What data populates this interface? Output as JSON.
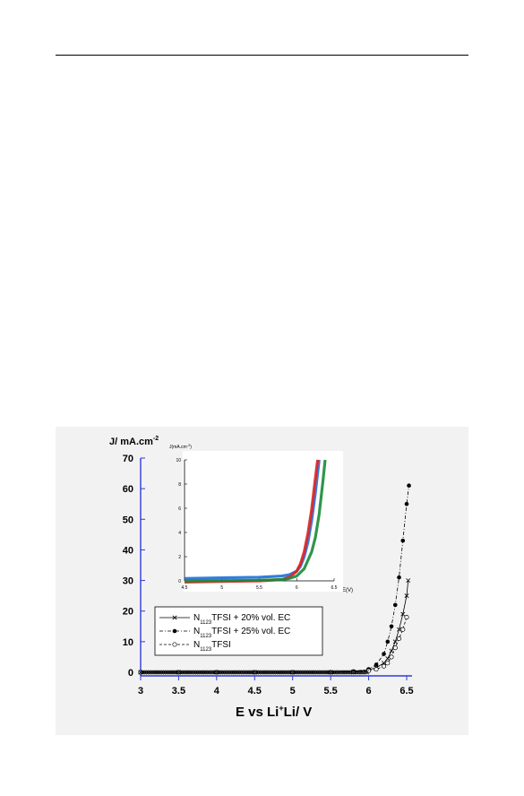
{
  "page": {
    "background": "#ffffff",
    "figure_background": "#f2f2f2"
  },
  "chart_data": [
    {
      "type": "scatter",
      "ylabel_main": "J/ mA.cm",
      "ylabel_sup": "-2",
      "xlabel_pre": "E vs Li",
      "xlabel_sup": "+",
      "xlabel_post": "Li/ V",
      "xlim": [
        3,
        6.5
      ],
      "ylim": [
        0,
        70
      ],
      "xticks": [
        "3",
        "3.5",
        "4",
        "4.5",
        "5",
        "5.5",
        "6",
        "6.5"
      ],
      "yticks": [
        "0",
        "10",
        "20",
        "30",
        "40",
        "50",
        "60",
        "70"
      ],
      "axis_color": "#2f3ae0",
      "legend_position": "bottom-left",
      "legend": [
        {
          "pre": "N",
          "sub": "1123",
          "post": "TFSI + 20% vol. EC",
          "marker": "x",
          "dash": "solid"
        },
        {
          "pre": "N",
          "sub": "1123",
          "post": "TFSI + 25% vol. EC",
          "marker": "filled-circle",
          "dash": "dash-dot"
        },
        {
          "pre": "N",
          "sub": "1123",
          "post": "TFSI",
          "marker": "open-circle",
          "dash": "dashed"
        }
      ],
      "series": [
        {
          "key": "ec20",
          "x": [
            3.0,
            3.5,
            4.0,
            4.5,
            5.0,
            5.5,
            5.8,
            6.0,
            6.1,
            6.2,
            6.25,
            6.3,
            6.35,
            6.4,
            6.45,
            6.5,
            6.52
          ],
          "y": [
            0,
            0,
            0,
            0,
            0,
            0,
            0.2,
            0.8,
            1.5,
            3.0,
            4.5,
            7.0,
            10.0,
            14.0,
            19.0,
            25.0,
            30.0
          ]
        },
        {
          "key": "ec25",
          "x": [
            3.0,
            3.5,
            4.0,
            4.5,
            5.0,
            5.5,
            5.8,
            6.0,
            6.1,
            6.2,
            6.25,
            6.3,
            6.35,
            6.4,
            6.45,
            6.5,
            6.53
          ],
          "y": [
            0,
            0,
            0,
            0,
            0,
            0,
            0.3,
            1.0,
            2.5,
            6.0,
            10.0,
            15.0,
            22.0,
            31.0,
            43.0,
            55.0,
            61.0
          ]
        },
        {
          "key": "neat",
          "x": [
            3.0,
            3.5,
            4.0,
            4.5,
            5.0,
            5.5,
            5.8,
            6.0,
            6.1,
            6.2,
            6.25,
            6.3,
            6.35,
            6.4,
            6.45,
            6.5
          ],
          "y": [
            0,
            0,
            0,
            0,
            0,
            0,
            0.1,
            0.5,
            1.0,
            2.0,
            3.0,
            5.0,
            8.0,
            11.0,
            14.0,
            18.0
          ]
        }
      ]
    },
    {
      "type": "line",
      "ylabel_pre": "J(mA.cm",
      "ylabel_sup": "-2",
      "ylabel_post": ")",
      "xlabel": "E(V)",
      "xlim": [
        4.5,
        6.5
      ],
      "ylim": [
        0,
        10
      ],
      "xticks": [
        "4.5",
        "5",
        "5.5",
        "6",
        "6.5"
      ],
      "yticks": [
        "0",
        "2",
        "4",
        "6",
        "8",
        "10"
      ],
      "series": [
        {
          "color": "#1e6fd9",
          "x": [
            4.5,
            5.0,
            5.5,
            5.8,
            5.9,
            6.0,
            6.05,
            6.1,
            6.15,
            6.2,
            6.25,
            6.3
          ],
          "y": [
            0.2,
            0.25,
            0.3,
            0.4,
            0.5,
            0.8,
            1.2,
            2.0,
            3.2,
            5.0,
            7.3,
            10.0
          ]
        },
        {
          "color": "#e02020",
          "x": [
            4.5,
            5.0,
            5.5,
            5.8,
            5.9,
            6.0,
            6.05,
            6.1,
            6.15,
            6.2,
            6.25,
            6.28
          ],
          "y": [
            -0.1,
            -0.05,
            0.0,
            0.1,
            0.3,
            0.8,
            1.4,
            2.4,
            3.9,
            5.9,
            8.5,
            10.0
          ]
        },
        {
          "color": "#1a8a3a",
          "x": [
            4.5,
            5.0,
            5.5,
            5.8,
            5.9,
            6.0,
            6.1,
            6.2,
            6.25,
            6.3,
            6.35,
            6.38
          ],
          "y": [
            0.0,
            0.02,
            0.05,
            0.1,
            0.2,
            0.4,
            1.0,
            2.4,
            3.6,
            5.5,
            8.2,
            10.0
          ]
        }
      ]
    }
  ]
}
